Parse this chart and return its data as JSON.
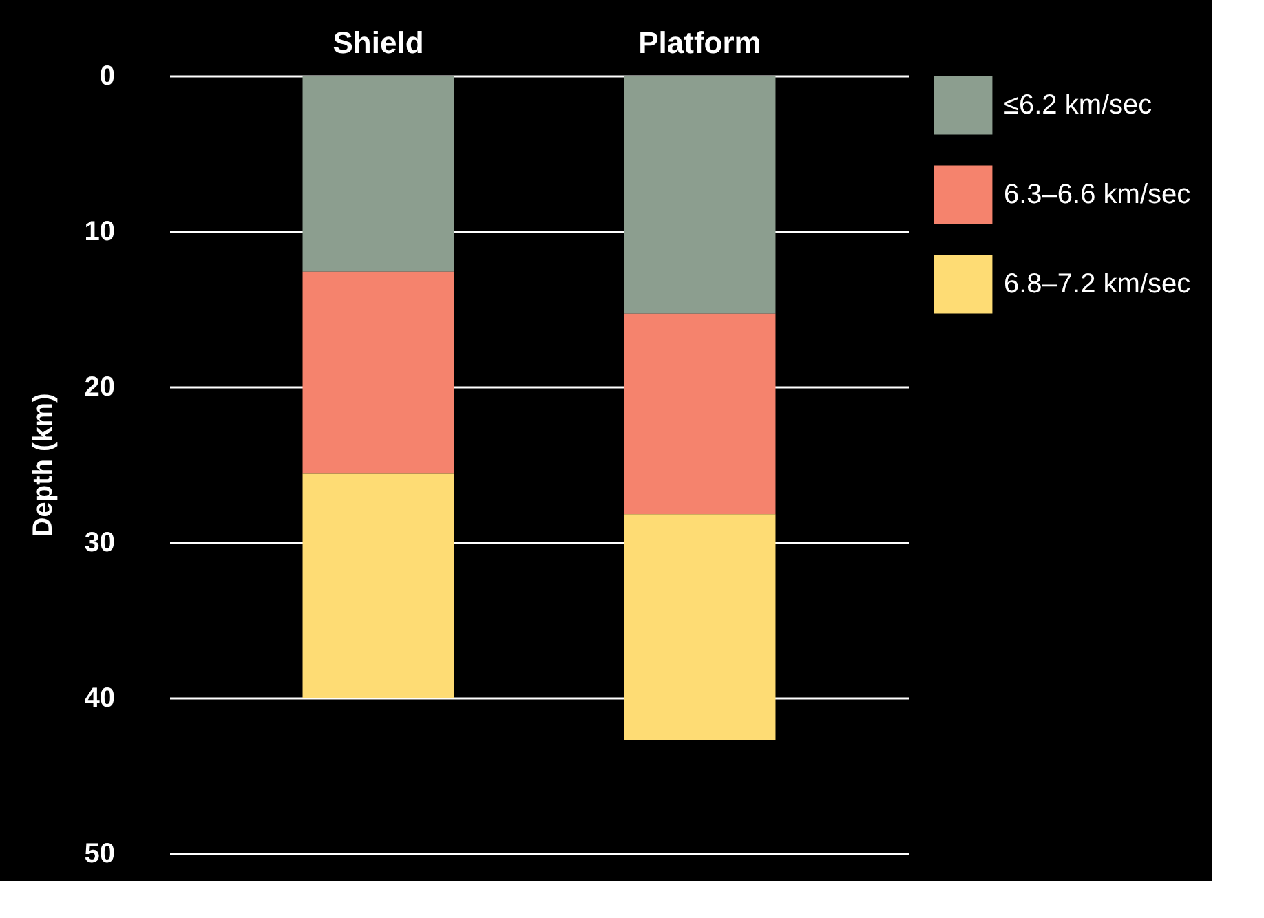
{
  "chart_data": {
    "type": "bar",
    "stacked": true,
    "ylabel": "Depth (km)",
    "categories": [
      "Shield",
      "Platform"
    ],
    "series": [
      {
        "name": "≤6.2 km/sec",
        "color": "#8c9e8f",
        "values": [
          12.6,
          15.3
        ]
      },
      {
        "name": "6.3–6.6 km/sec",
        "color": "#f5836d",
        "values": [
          13.0,
          12.9
        ]
      },
      {
        "name": "6.8–7.2 km/sec",
        "color": "#fedc74",
        "values": [
          14.4,
          14.5
        ]
      }
    ],
    "ylim": [
      50,
      0
    ],
    "yticks": [
      0,
      10,
      20,
      30,
      40,
      50
    ],
    "grid": "y",
    "legend": "right"
  }
}
